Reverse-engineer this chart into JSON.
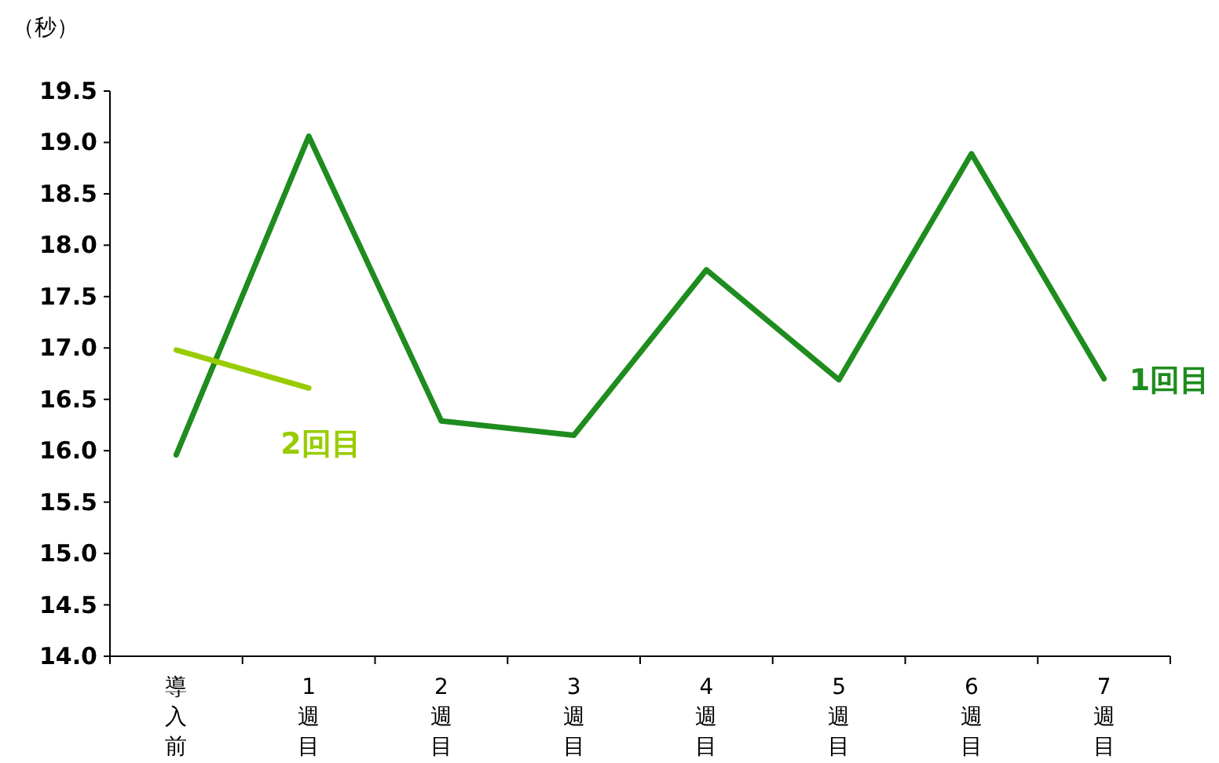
{
  "chart_data": {
    "type": "line",
    "ylabel": "（秒）",
    "categories": [
      "導入前",
      "1週目",
      "2週目",
      "3週目",
      "4週目",
      "5週目",
      "6週目",
      "7週目"
    ],
    "series": [
      {
        "name": "1回目",
        "color": "#1e8c1e",
        "values": [
          15.96,
          19.06,
          16.29,
          16.15,
          17.76,
          16.69,
          18.89,
          16.7
        ]
      },
      {
        "name": "2回目",
        "color": "#99cc00",
        "values": [
          16.98,
          16.61,
          null,
          null,
          null,
          null,
          null,
          null
        ]
      }
    ],
    "ylim": [
      14.0,
      19.5
    ],
    "yticks": [
      {
        "value": 14,
        "label": "14.0"
      },
      14.5,
      {
        "value": 15,
        "label": "15.0"
      },
      15.5,
      {
        "value": 16,
        "label": "16.0"
      },
      16.5,
      {
        "value": 17,
        "label": "17.0"
      },
      17.5,
      {
        "value": 18,
        "label": "18.0"
      },
      18.5,
      {
        "value": 19,
        "label": "19.0"
      },
      19.5
    ],
    "grid": false,
    "marker": "none",
    "line_style": "solid"
  }
}
